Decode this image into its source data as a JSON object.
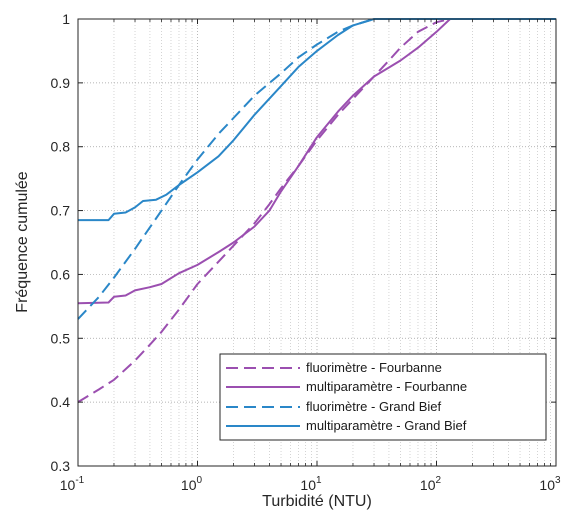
{
  "chart_data": {
    "type": "line",
    "title": "",
    "xlabel": "Turbidité (NTU)",
    "ylabel": "Fréquence cumulée",
    "xscale": "log",
    "xlim": [
      0.1,
      1000
    ],
    "ylim": [
      0.3,
      1
    ],
    "grid": "major and minor (dotted)",
    "legend_position": "bottom-right",
    "x_ticks": [
      {
        "base": "10",
        "exp": "-1",
        "value": 0.1
      },
      {
        "base": "10",
        "exp": "0",
        "value": 1
      },
      {
        "base": "10",
        "exp": "1",
        "value": 10
      },
      {
        "base": "10",
        "exp": "2",
        "value": 100
      },
      {
        "base": "10",
        "exp": "3",
        "value": 1000
      }
    ],
    "y_ticks": [
      {
        "label": "0.3",
        "value": 0.3
      },
      {
        "label": "0.4",
        "value": 0.4
      },
      {
        "label": "0.5",
        "value": 0.5
      },
      {
        "label": "0.6",
        "value": 0.6
      },
      {
        "label": "0.7",
        "value": 0.7
      },
      {
        "label": "0.8",
        "value": 0.8
      },
      {
        "label": "0.9",
        "value": 0.9
      },
      {
        "label": "1",
        "value": 1
      }
    ],
    "series": [
      {
        "name": "fluorimètre - Fourbanne",
        "color": "#9b4fb0",
        "dash": true,
        "points": [
          [
            0.1,
            0.4
          ],
          [
            0.15,
            0.42
          ],
          [
            0.2,
            0.435
          ],
          [
            0.3,
            0.465
          ],
          [
            0.4,
            0.49
          ],
          [
            0.5,
            0.51
          ],
          [
            0.7,
            0.545
          ],
          [
            1.0,
            0.585
          ],
          [
            1.5,
            0.62
          ],
          [
            2,
            0.645
          ],
          [
            3,
            0.68
          ],
          [
            4,
            0.71
          ],
          [
            5,
            0.735
          ],
          [
            7,
            0.77
          ],
          [
            10,
            0.81
          ],
          [
            15,
            0.85
          ],
          [
            20,
            0.875
          ],
          [
            30,
            0.91
          ],
          [
            40,
            0.935
          ],
          [
            50,
            0.955
          ],
          [
            70,
            0.98
          ],
          [
            100,
            0.995
          ],
          [
            130,
            1.0
          ],
          [
            1000,
            1.0
          ]
        ]
      },
      {
        "name": "multiparamètre - Fourbanne",
        "color": "#9b4fb0",
        "dash": false,
        "points": [
          [
            0.1,
            0.555
          ],
          [
            0.18,
            0.556
          ],
          [
            0.2,
            0.565
          ],
          [
            0.25,
            0.567
          ],
          [
            0.3,
            0.575
          ],
          [
            0.4,
            0.58
          ],
          [
            0.5,
            0.585
          ],
          [
            0.7,
            0.602
          ],
          [
            1.0,
            0.615
          ],
          [
            1.5,
            0.635
          ],
          [
            2,
            0.65
          ],
          [
            3,
            0.675
          ],
          [
            4,
            0.7
          ],
          [
            5,
            0.73
          ],
          [
            7,
            0.77
          ],
          [
            10,
            0.815
          ],
          [
            15,
            0.855
          ],
          [
            20,
            0.88
          ],
          [
            30,
            0.91
          ],
          [
            50,
            0.935
          ],
          [
            70,
            0.955
          ],
          [
            100,
            0.98
          ],
          [
            130,
            1.0
          ],
          [
            1000,
            1.0
          ]
        ]
      },
      {
        "name": "fluorimètre - Grand Bief",
        "color": "#2a87c8",
        "dash": true,
        "points": [
          [
            0.1,
            0.53
          ],
          [
            0.15,
            0.565
          ],
          [
            0.2,
            0.595
          ],
          [
            0.3,
            0.64
          ],
          [
            0.5,
            0.7
          ],
          [
            0.7,
            0.74
          ],
          [
            1.0,
            0.78
          ],
          [
            1.5,
            0.82
          ],
          [
            2,
            0.845
          ],
          [
            3,
            0.88
          ],
          [
            5,
            0.915
          ],
          [
            7,
            0.94
          ],
          [
            10,
            0.96
          ],
          [
            15,
            0.98
          ],
          [
            20,
            0.99
          ],
          [
            30,
            1.0
          ],
          [
            1000,
            1.0
          ]
        ]
      },
      {
        "name": "multiparamètre - Grand Bief",
        "color": "#2a87c8",
        "dash": false,
        "points": [
          [
            0.1,
            0.685
          ],
          [
            0.18,
            0.685
          ],
          [
            0.2,
            0.695
          ],
          [
            0.25,
            0.697
          ],
          [
            0.3,
            0.705
          ],
          [
            0.35,
            0.715
          ],
          [
            0.45,
            0.717
          ],
          [
            0.55,
            0.725
          ],
          [
            0.7,
            0.74
          ],
          [
            1.0,
            0.76
          ],
          [
            1.5,
            0.785
          ],
          [
            2,
            0.81
          ],
          [
            3,
            0.85
          ],
          [
            5,
            0.895
          ],
          [
            7,
            0.925
          ],
          [
            10,
            0.95
          ],
          [
            15,
            0.975
          ],
          [
            20,
            0.99
          ],
          [
            30,
            1.0
          ],
          [
            1000,
            1.0
          ]
        ]
      }
    ]
  }
}
